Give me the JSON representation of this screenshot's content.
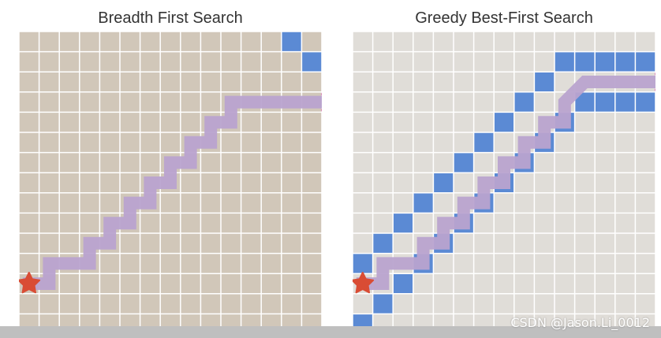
{
  "panels": {
    "left": {
      "title": "Breadth First Search",
      "background_color": "#d1c7b9",
      "frontier_cells": [
        [
          13,
          0
        ],
        [
          14,
          1
        ]
      ],
      "path": [
        [
          0,
          12
        ],
        [
          1,
          12
        ],
        [
          1,
          11
        ],
        [
          2,
          11
        ],
        [
          3,
          11
        ],
        [
          3,
          10
        ],
        [
          4,
          10
        ],
        [
          4,
          9
        ],
        [
          5,
          9
        ],
        [
          5,
          8
        ],
        [
          6,
          8
        ],
        [
          6,
          7
        ],
        [
          7,
          7
        ],
        [
          7,
          6
        ],
        [
          8,
          6
        ],
        [
          8,
          5
        ],
        [
          9,
          5
        ],
        [
          9,
          4
        ],
        [
          10,
          4
        ],
        [
          10,
          3
        ],
        [
          11,
          3
        ],
        [
          12,
          3
        ],
        [
          13,
          3
        ],
        [
          14,
          3
        ],
        [
          15,
          3
        ]
      ]
    },
    "right": {
      "title": "Greedy Best-First Search",
      "background_color": "#e0ddd8",
      "frontier_cells": [
        [
          0,
          14
        ],
        [
          1,
          13
        ],
        [
          0,
          11
        ],
        [
          1,
          10
        ],
        [
          2,
          9
        ],
        [
          3,
          8
        ],
        [
          4,
          7
        ],
        [
          5,
          6
        ],
        [
          6,
          5
        ],
        [
          7,
          4
        ],
        [
          8,
          3
        ],
        [
          9,
          2
        ],
        [
          10,
          1
        ],
        [
          11,
          1
        ],
        [
          12,
          1
        ],
        [
          13,
          1
        ],
        [
          14,
          1
        ],
        [
          2,
          12
        ],
        [
          3,
          11
        ],
        [
          4,
          10
        ],
        [
          5,
          9
        ],
        [
          6,
          8
        ],
        [
          7,
          7
        ],
        [
          8,
          6
        ],
        [
          9,
          5
        ],
        [
          10,
          4
        ],
        [
          11,
          3
        ],
        [
          12,
          3
        ],
        [
          13,
          3
        ],
        [
          14,
          3
        ]
      ],
      "path": [
        [
          0,
          12
        ],
        [
          1,
          12
        ],
        [
          1,
          11
        ],
        [
          2,
          11
        ],
        [
          3,
          11
        ],
        [
          3,
          10
        ],
        [
          4,
          10
        ],
        [
          4,
          9
        ],
        [
          5,
          9
        ],
        [
          5,
          8
        ],
        [
          6,
          8
        ],
        [
          6,
          7
        ],
        [
          7,
          7
        ],
        [
          7,
          6
        ],
        [
          8,
          6
        ],
        [
          8,
          5
        ],
        [
          9,
          5
        ],
        [
          9,
          4
        ],
        [
          10,
          4
        ],
        [
          10,
          3
        ],
        [
          11,
          2
        ],
        [
          12,
          2
        ],
        [
          13,
          2
        ],
        [
          14,
          2
        ],
        [
          15,
          2
        ]
      ]
    }
  },
  "grid": {
    "columns": 15,
    "rows": 15
  },
  "colors": {
    "frontier": "#5b8ad4",
    "path": "#b9a3cf",
    "start_star": "#d94c34",
    "goal_x": "#d45aa8",
    "grid_line": "#ffffff"
  },
  "icons": {
    "start": "star-icon",
    "goal": "x-mark-icon"
  },
  "watermark": "CSDN @Jason.Li_0012"
}
